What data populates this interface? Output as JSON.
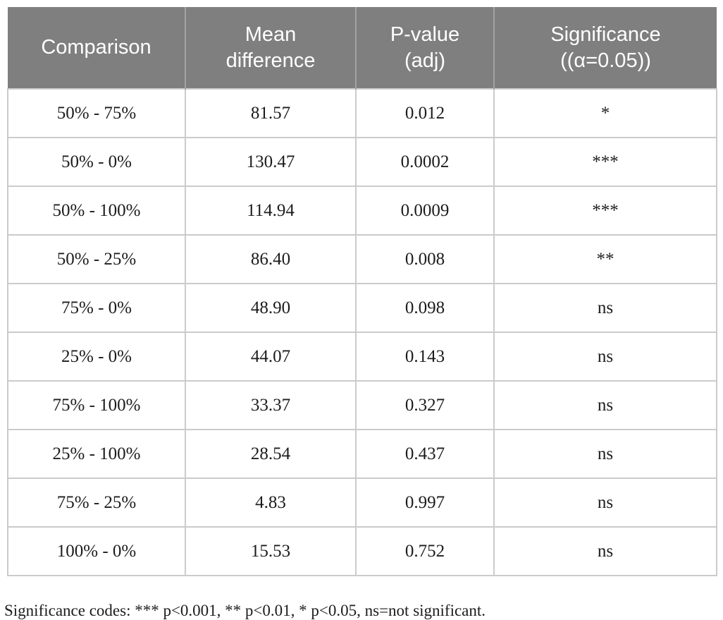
{
  "table": {
    "headers": [
      {
        "line1": "Comparison",
        "line2": ""
      },
      {
        "line1": "Mean",
        "line2": "difference"
      },
      {
        "line1": "P-value",
        "line2": "(adj)"
      },
      {
        "line1": "Significance",
        "line2": "((α=0.05))"
      }
    ],
    "rows": [
      {
        "comparison": "50% - 75%",
        "mean_difference": "81.57",
        "p_value_adj": "0.012",
        "significance": "*"
      },
      {
        "comparison": "50% - 0%",
        "mean_difference": "130.47",
        "p_value_adj": "0.0002",
        "significance": "***"
      },
      {
        "comparison": "50% - 100%",
        "mean_difference": "114.94",
        "p_value_adj": "0.0009",
        "significance": "***"
      },
      {
        "comparison": "50% - 25%",
        "mean_difference": "86.40",
        "p_value_adj": "0.008",
        "significance": "**"
      },
      {
        "comparison": "75% - 0%",
        "mean_difference": "48.90",
        "p_value_adj": "0.098",
        "significance": "ns"
      },
      {
        "comparison": "25% - 0%",
        "mean_difference": "44.07",
        "p_value_adj": "0.143",
        "significance": "ns"
      },
      {
        "comparison": "75% - 100%",
        "mean_difference": "33.37",
        "p_value_adj": "0.327",
        "significance": "ns"
      },
      {
        "comparison": "25% - 100%",
        "mean_difference": "28.54",
        "p_value_adj": "0.437",
        "significance": "ns"
      },
      {
        "comparison": "75% - 25%",
        "mean_difference": "4.83",
        "p_value_adj": "0.997",
        "significance": "ns"
      },
      {
        "comparison": "100% - 0%",
        "mean_difference": "15.53",
        "p_value_adj": "0.752",
        "significance": "ns"
      }
    ]
  },
  "footnote": "Significance codes: *** p<0.001, ** p<0.01, * p<0.05, ns=not significant.",
  "colors": {
    "header_bg": "#7f7f7f",
    "header_text": "#ffffff",
    "header_divider": "#a3a3a3",
    "body_border": "#cbcbcb",
    "body_text": "#1c1c1c"
  }
}
